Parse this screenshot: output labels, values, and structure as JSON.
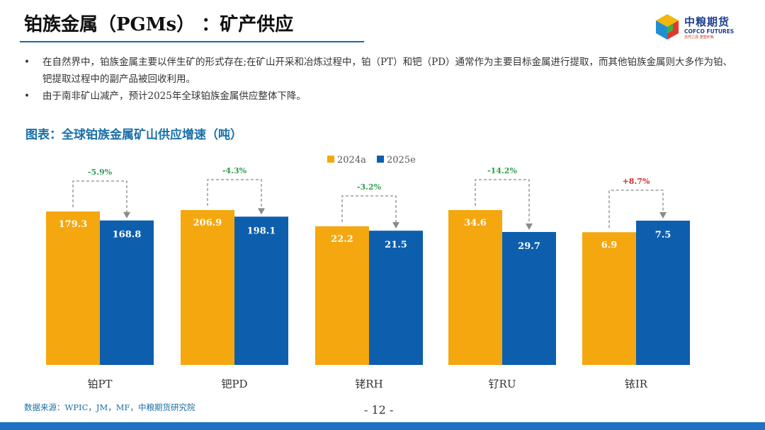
{
  "header": {
    "title": "铂族金属（PGMs） ：矿产供应"
  },
  "logo": {
    "name_cn": "中粮期货",
    "name_en": "COFCO FUTURES",
    "tagline": "自然之源  重塑你我"
  },
  "bullets": [
    "在自然界中，铂族金属主要以伴生矿的形式存在;在矿山开采和冶炼过程中，铂（PT）和钯（PD）通常作为主要目标金属进行提取，而其他铂族金属则大多作为铂、钯提取过程中的副产品被回收利用。",
    "由于南非矿山减产，预计2025年全球铂族金属供应整体下降。"
  ],
  "chart_title": "图表：全球铂族金属矿山供应增速（吨）",
  "chart_data": {
    "type": "bar",
    "title": "图表：全球铂族金属矿山供应增速（吨）",
    "categories": [
      "铂PT",
      "钯PD",
      "铑RH",
      "钌RU",
      "铱IR"
    ],
    "series": [
      {
        "name": "2024a",
        "color": "#f5a70f",
        "values": [
          179.3,
          206.9,
          22.2,
          34.6,
          6.9
        ]
      },
      {
        "name": "2025e",
        "color": "#0d5fae",
        "values": [
          168.8,
          198.1,
          21.5,
          29.7,
          7.5
        ]
      }
    ],
    "value_labels": [
      [
        "179.3",
        "206.9",
        "22.2",
        "34.6",
        "6.9"
      ],
      [
        "168.8",
        "198.1",
        "21.5",
        "29.7",
        "7.5"
      ]
    ],
    "changes": [
      "-5.9%",
      "-4.3%",
      "-3.2%",
      "-14.2%",
      "+8.7%"
    ],
    "change_colors": [
      "#2e9e4f",
      "#2e9e4f",
      "#2e9e4f",
      "#2e9e4f",
      "#d32a2a"
    ],
    "legend_position": "top",
    "note": "each category group has its own scale",
    "grid": false
  },
  "footer": {
    "source": "数据来源：WPIC，JM，MF，中粮期货研究院",
    "page": "- 12 -"
  }
}
